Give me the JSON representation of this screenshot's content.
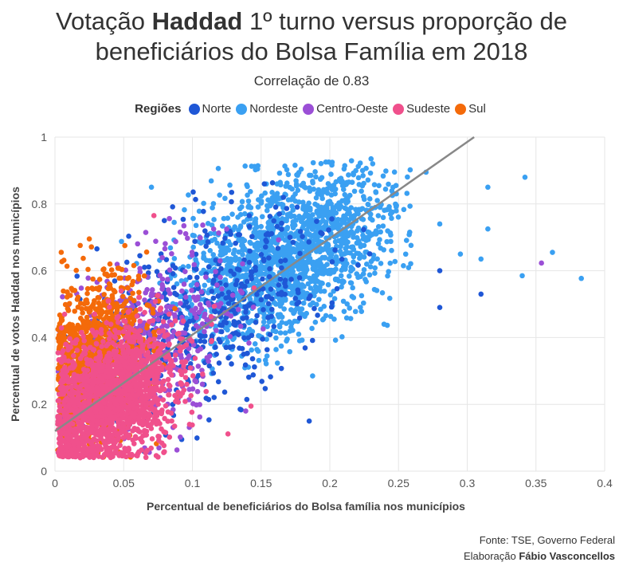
{
  "title": {
    "line1_pre": "Votação ",
    "line1_bold": "Haddad",
    "line1_post": " 1º turno versus proporção de",
    "line2": "beneficiários do Bolsa Família em 2018"
  },
  "subtitle": "Correlação de 0.83",
  "legend": {
    "title": "Regiões",
    "items": [
      {
        "name": "Norte",
        "color": "#1f57d6"
      },
      {
        "name": "Nordeste",
        "color": "#3aa0f2"
      },
      {
        "name": "Centro-Oeste",
        "color": "#9b4fd6"
      },
      {
        "name": "Sudeste",
        "color": "#f0508c"
      },
      {
        "name": "Sul",
        "color": "#f46a0a"
      }
    ]
  },
  "footer": {
    "source": "Fonte: TSE, Governo Federal",
    "credit_label": "Elaboração ",
    "credit_name": "Fábio Vasconcellos"
  },
  "chart_data": {
    "type": "scatter",
    "title": "Votação Haddad 1º turno versus proporção de beneficiários do Bolsa Família em 2018",
    "subtitle": "Correlação de 0.83",
    "xlabel": "Percentual de beneficiários do Bolsa família nos municípios",
    "ylabel": "Percentual de votos Haddad nos municípios",
    "xlim": [
      0,
      0.4
    ],
    "ylim": [
      0,
      1
    ],
    "xticks": [
      0,
      0.05,
      0.1,
      0.15,
      0.2,
      0.25,
      0.3,
      0.35,
      0.4
    ],
    "xtick_labels": [
      "0",
      "0.05",
      "0.1",
      "0.15",
      "0.2",
      "0.25",
      "0.3",
      "0.35",
      "0.4"
    ],
    "yticks": [
      0,
      0.2,
      0.4,
      0.6,
      0.8,
      1
    ],
    "ytick_labels": [
      "0",
      "0.2",
      "0.4",
      "0.6",
      "0.8",
      "1"
    ],
    "grid": true,
    "legend_position": "top-center",
    "trend_line": {
      "x": [
        0,
        0.305
      ],
      "y": [
        0.12,
        1.0
      ],
      "color": "#888888"
    },
    "point_counts_per_series": {
      "Norte": 450,
      "Nordeste": 1790,
      "Centro-Oeste": 465,
      "Sudeste": 1665,
      "Sul": 1190
    },
    "series": [
      {
        "name": "Norte",
        "color": "#1f57d6",
        "cluster": {
          "x_center": 0.11,
          "x_spread": 0.045,
          "y_center": 0.48,
          "y_spread": 0.14
        },
        "outliers": [
          [
            0.28,
            0.49
          ],
          [
            0.28,
            0.6
          ],
          [
            0.31,
            0.53
          ],
          [
            0.185,
            0.15
          ]
        ]
      },
      {
        "name": "Nordeste",
        "color": "#3aa0f2",
        "cluster": {
          "x_center": 0.17,
          "x_spread": 0.04,
          "y_center": 0.65,
          "y_spread": 0.12
        },
        "outliers": [
          [
            0.342,
            0.88
          ],
          [
            0.315,
            0.85
          ],
          [
            0.362,
            0.655
          ],
          [
            0.383,
            0.577
          ],
          [
            0.34,
            0.585
          ],
          [
            0.31,
            0.635
          ],
          [
            0.295,
            0.65
          ],
          [
            0.315,
            0.725
          ],
          [
            0.28,
            0.74
          ],
          [
            0.27,
            0.895
          ],
          [
            0.23,
            0.935
          ]
        ]
      },
      {
        "name": "Centro-Oeste",
        "color": "#9b4fd6",
        "cluster": {
          "x_center": 0.07,
          "x_spread": 0.03,
          "y_center": 0.4,
          "y_spread": 0.13
        },
        "outliers": [
          [
            0.354,
            0.623
          ]
        ]
      },
      {
        "name": "Sudeste",
        "color": "#f0508c",
        "cluster": {
          "x_center": 0.04,
          "x_spread": 0.025,
          "y_center": 0.22,
          "y_spread": 0.1
        },
        "outliers": [
          [
            0.072,
            0.765
          ]
        ]
      },
      {
        "name": "Sul",
        "color": "#f46a0a",
        "cluster": {
          "x_center": 0.03,
          "x_spread": 0.018,
          "y_center": 0.32,
          "y_spread": 0.12
        },
        "outliers": [
          [
            0.04,
            0.62
          ]
        ]
      }
    ]
  }
}
